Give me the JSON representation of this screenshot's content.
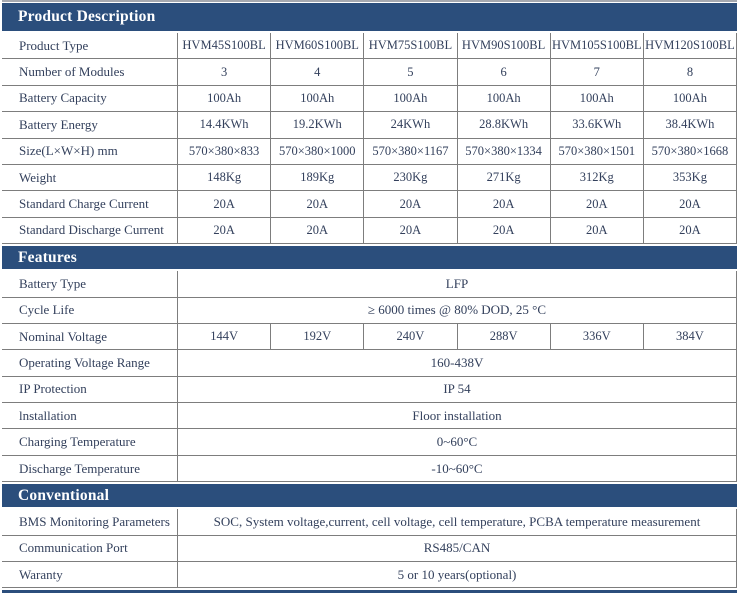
{
  "colors": {
    "section_header_bg": "#2B4E7C",
    "section_header_text": "#ffffff",
    "body_text": "#33405c",
    "grid_line": "#7d7d7d"
  },
  "sections": {
    "product": {
      "title": "Product Description",
      "rows": [
        {
          "label": "Product Type",
          "values": [
            "HVM45S100BL",
            "HVM60S100BL",
            "HVM75S100BL",
            "HVM90S100BL",
            "HVM105S100BL",
            "HVM120S100BL"
          ]
        },
        {
          "label": "Number of Modules",
          "values": [
            "3",
            "4",
            "5",
            "6",
            "7",
            "8"
          ]
        },
        {
          "label": "Battery Capacity",
          "values": [
            "100Ah",
            "100Ah",
            "100Ah",
            "100Ah",
            "100Ah",
            "100Ah"
          ]
        },
        {
          "label": "Battery Energy",
          "values": [
            "14.4KWh",
            "19.2KWh",
            "24KWh",
            "28.8KWh",
            "33.6KWh",
            "38.4KWh"
          ]
        },
        {
          "label": "Size(L×W×H) mm",
          "values": [
            "570×380×833",
            "570×380×1000",
            "570×380×1167",
            "570×380×1334",
            "570×380×1501",
            "570×380×1668"
          ]
        },
        {
          "label": "Weight",
          "values": [
            "148Kg",
            "189Kg",
            "230Kg",
            "271Kg",
            "312Kg",
            "353Kg"
          ]
        },
        {
          "label": "Standard Charge Current",
          "values": [
            "20A",
            "20A",
            "20A",
            "20A",
            "20A",
            "20A"
          ]
        },
        {
          "label": "Standard Discharge Current",
          "values": [
            "20A",
            "20A",
            "20A",
            "20A",
            "20A",
            "20A"
          ]
        }
      ]
    },
    "features": {
      "title": "Features",
      "rows": [
        {
          "label": "Battery Type",
          "span": "LFP"
        },
        {
          "label": "Cycle Life",
          "span": "≥ 6000 times @ 80% DOD, 25 °C"
        },
        {
          "label": "Nominal Voltage",
          "values": [
            "144V",
            "192V",
            "240V",
            "288V",
            "336V",
            "384V"
          ]
        },
        {
          "label": "Operating Voltage Range",
          "span": "160-438V"
        },
        {
          "label": "IP Protection",
          "span": "IP 54"
        },
        {
          "label": "lnstallation",
          "span": "Floor installation"
        },
        {
          "label": "Charging Temperature",
          "span": "0~60°C"
        },
        {
          "label": "Discharge Temperature",
          "span": "-10~60°C"
        }
      ]
    },
    "conventional": {
      "title": "Conventional",
      "rows": [
        {
          "label": "BMS Monitoring Parameters",
          "span": "SOC, System voltage,current, cell voltage, cell temperature, PCBA temperature measurement"
        },
        {
          "label": "Communication Port",
          "span": "RS485/CAN"
        },
        {
          "label": "Waranty",
          "span": "5 or 10 years(optional)"
        }
      ]
    }
  }
}
